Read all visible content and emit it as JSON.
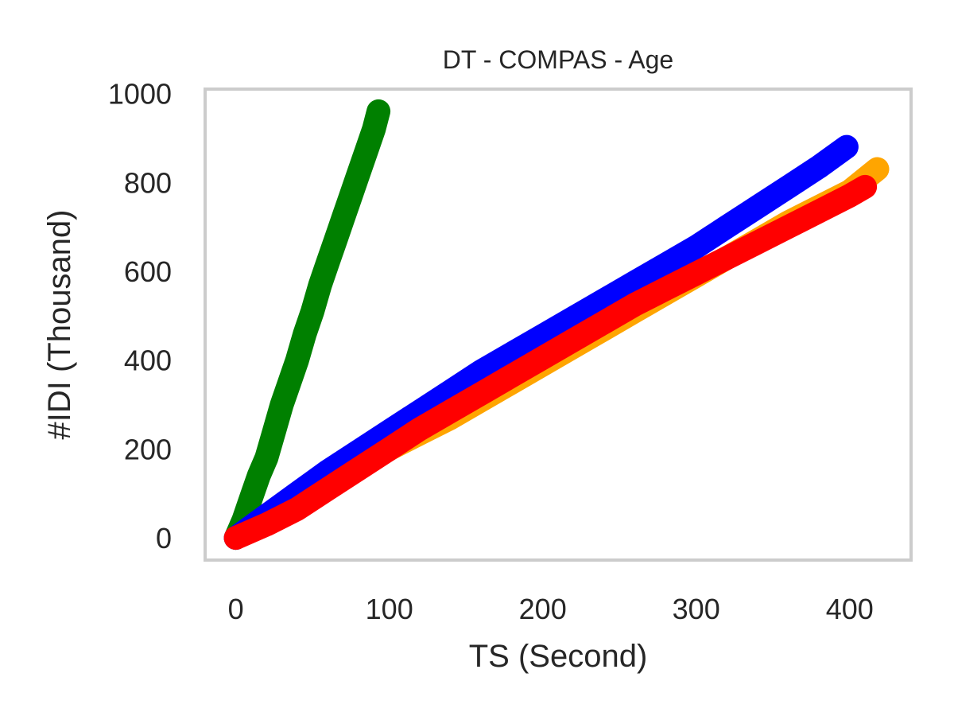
{
  "chart_data": {
    "type": "line",
    "title": "DT - COMPAS - Age",
    "xlabel": "TS (Second)",
    "ylabel": "#IDI (Thousand)",
    "xlim": [
      -20,
      440
    ],
    "ylim": [
      -50,
      1010
    ],
    "xticks": [
      0,
      100,
      200,
      300,
      400
    ],
    "yticks": [
      0,
      200,
      400,
      600,
      800,
      1000
    ],
    "grid": false,
    "frame_color": "#cccccc",
    "series": [
      {
        "name": "green",
        "color": "#008000",
        "x": [
          0,
          5,
          10,
          15,
          20,
          25,
          30,
          35,
          40,
          45,
          50,
          55,
          60,
          65,
          70,
          75,
          80,
          85,
          90,
          93
        ],
        "y": [
          0,
          40,
          90,
          140,
          180,
          240,
          300,
          350,
          400,
          460,
          510,
          570,
          620,
          670,
          720,
          770,
          820,
          870,
          920,
          960
        ]
      },
      {
        "name": "orange",
        "color": "#ffa500",
        "x": [
          0,
          20,
          40,
          60,
          80,
          100,
          120,
          140,
          160,
          180,
          200,
          220,
          240,
          260,
          280,
          300,
          320,
          340,
          360,
          380,
          400,
          418
        ],
        "y": [
          0,
          35,
          75,
          120,
          160,
          200,
          235,
          270,
          310,
          350,
          390,
          430,
          470,
          510,
          550,
          590,
          630,
          670,
          710,
          745,
          780,
          830
        ]
      },
      {
        "name": "blue",
        "color": "#0000ff",
        "x": [
          0,
          20,
          40,
          60,
          80,
          100,
          120,
          140,
          160,
          180,
          200,
          220,
          240,
          260,
          280,
          300,
          320,
          340,
          360,
          380,
          398
        ],
        "y": [
          0,
          50,
          100,
          150,
          195,
          240,
          285,
          330,
          375,
          415,
          455,
          495,
          535,
          575,
          615,
          655,
          700,
          745,
          790,
          835,
          880
        ]
      },
      {
        "name": "red",
        "color": "#ff0000",
        "x": [
          0,
          20,
          40,
          60,
          80,
          100,
          120,
          140,
          160,
          180,
          200,
          220,
          240,
          260,
          280,
          300,
          320,
          340,
          360,
          380,
          400,
          410
        ],
        "y": [
          0,
          30,
          65,
          110,
          155,
          200,
          245,
          285,
          325,
          365,
          405,
          445,
          485,
          525,
          560,
          595,
          630,
          665,
          700,
          735,
          770,
          790
        ]
      }
    ]
  }
}
